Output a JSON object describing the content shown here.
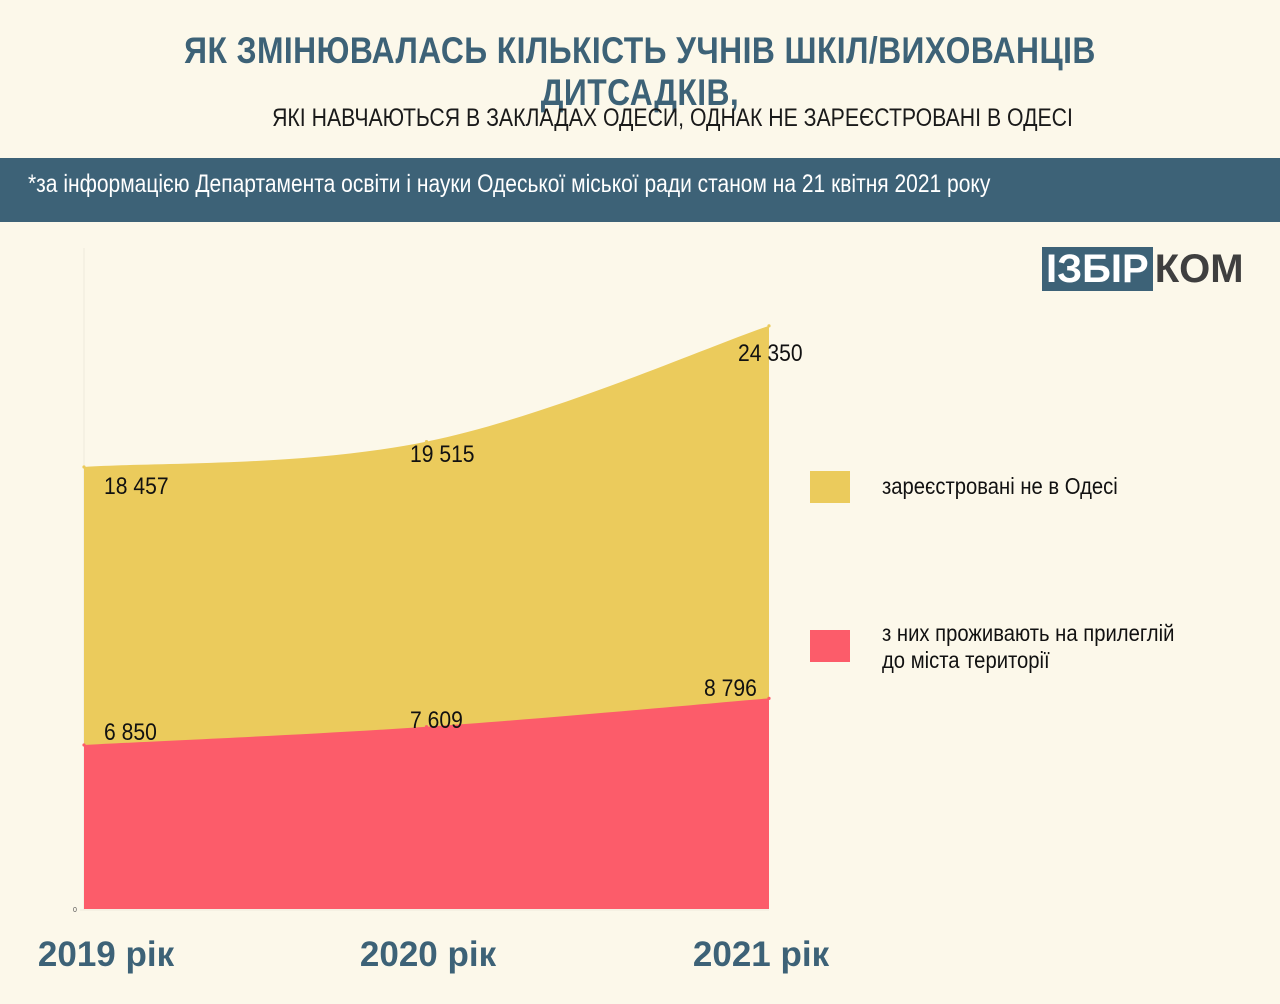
{
  "header": {
    "title": "ЯК ЗМІНЮВАЛАСЬ КІЛЬКІСТЬ УЧНІВ ШКІЛ/ВИХОВАНЦІВ ДИТСАДКІВ,",
    "subtitle": "ЯКІ НАВЧАЮТЬСЯ В ЗАКЛАДАХ ОДЕСИ, ОДНАК НЕ ЗАРЕЄСТРОВАНІ В ОДЕСІ",
    "source_note": "*за інформацією Департамента освіти і науки Одеської міської ради станом на 21 квітня 2021 року"
  },
  "logo": {
    "part1": "ІЗБІР",
    "part2": "КОМ"
  },
  "colors": {
    "accent": "#3d6277",
    "background": "#fcf8ea",
    "series_total": "#ebcb5c",
    "series_suburb": "#fc5c6a"
  },
  "chart_data": {
    "type": "area",
    "categories": [
      "2019 рік",
      "2020 рік",
      "2021 рік"
    ],
    "series": [
      {
        "name": "зареєстровані не в Одесі",
        "values": [
          18457,
          19515,
          24350
        ],
        "labels": [
          "18 457",
          "19 515",
          "24 350"
        ],
        "color": "#ebcb5c"
      },
      {
        "name": "з них проживають на прилеглій до міста території",
        "values": [
          6850,
          7609,
          8796
        ],
        "labels": [
          "6 850",
          "7 609",
          "8 796"
        ],
        "color": "#fc5c6a"
      }
    ],
    "legend_lines": [
      [
        "зареєстровані не в Одесі"
      ],
      [
        "з них проживають на прилеглій",
        "до міста території"
      ]
    ],
    "y_zero_label": "0",
    "ylim": [
      0,
      27600
    ],
    "grid": false,
    "legend_position": "right"
  }
}
